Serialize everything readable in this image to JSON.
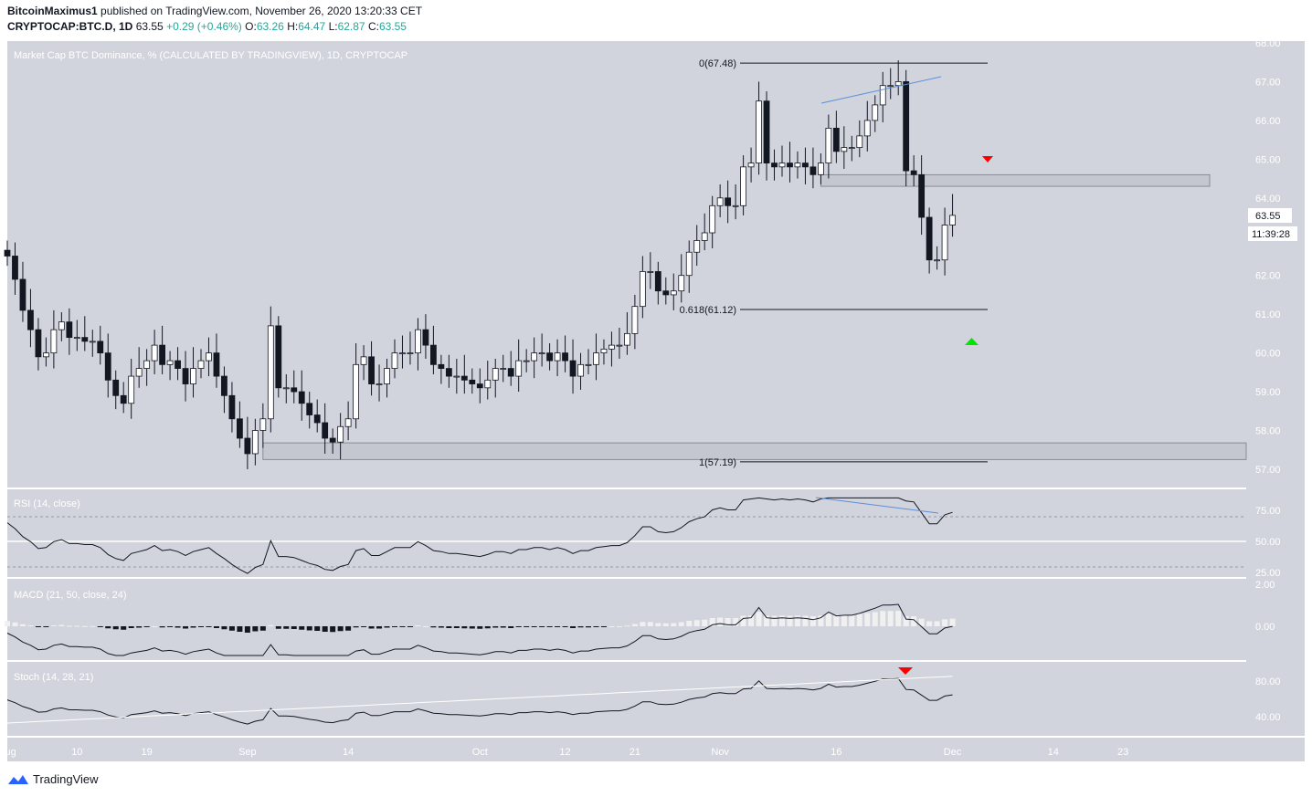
{
  "header": {
    "author": "BitcoinMaximus1",
    "published_text": "published on TradingView.com, November 26, 2020 13:20:33 CET",
    "symbol": "CRYPTOCAP:BTC.D, 1D",
    "last": "63.55",
    "change": "+0.29 (+0.46%)",
    "o_label": "O:",
    "o_val": "63.26",
    "h_label": "H:",
    "h_val": "64.47",
    "l_label": "L:",
    "l_val": "62.87",
    "c_label": "C:",
    "c_val": "63.55"
  },
  "footer": {
    "brand": "TradingView"
  },
  "colors": {
    "pane_bg": "#d1d4dc",
    "candle_up": "#ffffff",
    "candle_down": "#131722",
    "accent_line": "#5b8fd9",
    "arrow_red": "#ff0000",
    "arrow_green": "#00e600"
  },
  "chart_data": {
    "type": "candlestick",
    "title": "Market Cap BTC Dominance, % (CALCULATED BY TRADINGVIEW), 1D, CRYPTOCAP",
    "y_ticks": [
      "68.00",
      "67.00",
      "66.00",
      "65.00",
      "64.00",
      "63.00",
      "62.00",
      "61.00",
      "60.00",
      "59.00",
      "58.00",
      "57.00"
    ],
    "ylim": [
      56.8,
      68.0
    ],
    "x_ticks": [
      {
        "label": "Aug",
        "day": 0
      },
      {
        "label": "10",
        "day": 9
      },
      {
        "label": "19",
        "day": 18
      },
      {
        "label": "Sep",
        "day": 31
      },
      {
        "label": "14",
        "day": 44
      },
      {
        "label": "Oct",
        "day": 61
      },
      {
        "label": "12",
        "day": 72
      },
      {
        "label": "21",
        "day": 81
      },
      {
        "label": "Nov",
        "day": 92
      },
      {
        "label": "16",
        "day": 107
      },
      {
        "label": "Dec",
        "day": 122
      },
      {
        "label": "14",
        "day": 135
      },
      {
        "label": "23",
        "day": 144
      }
    ],
    "last_price": "63.55",
    "countdown": "11:39:28",
    "fib_levels": [
      {
        "label": "0(67.48)",
        "value": 67.48
      },
      {
        "label": "0.618(61.12)",
        "value": 61.12
      },
      {
        "label": "1(57.19)",
        "value": 57.19
      }
    ],
    "zones": [
      {
        "name": "resistance",
        "from": 64.3,
        "to": 64.6
      },
      {
        "name": "support",
        "from": 57.25,
        "to": 57.68
      }
    ],
    "closes": [
      62.5,
      61.9,
      61.1,
      60.6,
      59.9,
      60.0,
      60.6,
      60.8,
      60.4,
      60.4,
      60.3,
      60.3,
      60.0,
      59.3,
      58.9,
      58.7,
      59.4,
      59.6,
      59.8,
      60.2,
      59.7,
      59.8,
      59.6,
      59.2,
      59.6,
      59.8,
      60.0,
      59.4,
      58.9,
      58.3,
      57.8,
      57.4,
      58.0,
      58.3,
      60.7,
      59.1,
      59.1,
      59.0,
      58.7,
      58.4,
      58.2,
      57.8,
      57.7,
      58.1,
      58.3,
      59.7,
      59.9,
      59.2,
      59.2,
      59.6,
      60.0,
      60.0,
      60.0,
      60.6,
      60.2,
      59.7,
      59.6,
      59.4,
      59.4,
      59.3,
      59.2,
      59.1,
      59.3,
      59.6,
      59.6,
      59.4,
      59.8,
      59.8,
      60.0,
      60.0,
      59.8,
      60.0,
      59.8,
      59.4,
      59.7,
      59.7,
      60.0,
      60.1,
      60.2,
      60.2,
      60.5,
      61.2,
      62.1,
      62.1,
      61.6,
      61.5,
      61.6,
      62.0,
      62.6,
      62.9,
      63.1,
      63.8,
      64.0,
      63.8,
      63.8,
      64.8,
      64.9,
      66.5,
      64.9,
      64.8,
      64.9,
      64.8,
      64.9,
      64.8,
      64.6,
      64.9,
      65.8,
      65.2,
      65.3,
      65.3,
      65.6,
      66.0,
      66.4,
      66.9,
      66.9,
      67.0,
      64.7,
      64.6,
      63.5,
      62.4,
      62.4,
      63.3,
      63.55
    ]
  }
}
